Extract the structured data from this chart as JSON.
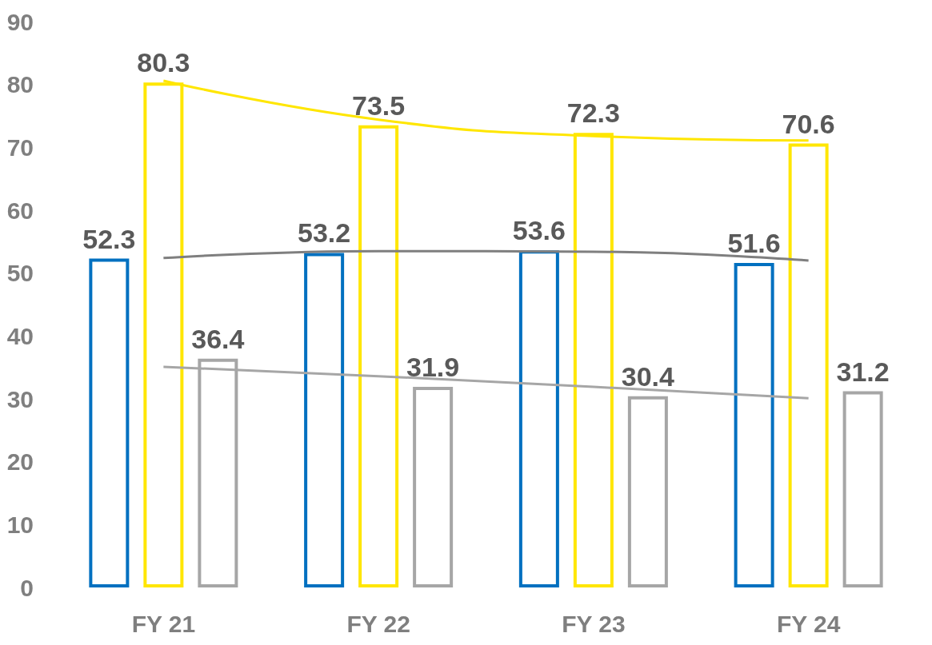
{
  "chart_data": {
    "type": "bar",
    "categories": [
      "FY 21",
      "FY 22",
      "FY 23",
      "FY 24"
    ],
    "series": [
      {
        "color": "#0070c0",
        "values": [
          52.3,
          53.2,
          53.6,
          51.6
        ],
        "value_labels": [
          "52.3",
          "53.2",
          "53.6",
          "51.6"
        ]
      },
      {
        "color": "#ffe600",
        "values": [
          80.3,
          73.5,
          72.3,
          70.6
        ],
        "value_labels": [
          "80.3",
          "73.5",
          "72.3",
          "70.6"
        ]
      },
      {
        "color": "#a6a6a6",
        "values": [
          36.4,
          31.9,
          30.4,
          31.2
        ],
        "value_labels": [
          "36.4",
          "31.9",
          "30.4",
          "31.2"
        ]
      },
      {
        "type": "line",
        "color": "#7f7f7f",
        "marker": "none",
        "values": [
          52.4,
          53.5,
          53.4,
          52.0
        ]
      },
      {
        "type": "line",
        "color": "#ffe600",
        "marker": "none",
        "values": [
          80.6,
          74.4,
          71.8,
          71.1
        ]
      },
      {
        "type": "line",
        "color": "#a6a6a6",
        "marker": "none",
        "values": [
          35.1,
          33.6,
          31.9,
          30.1
        ]
      }
    ],
    "ylim": [
      0,
      90
    ],
    "yticks": [
      0,
      10,
      20,
      30,
      40,
      50,
      60,
      70,
      80,
      90
    ],
    "grid": false
  }
}
